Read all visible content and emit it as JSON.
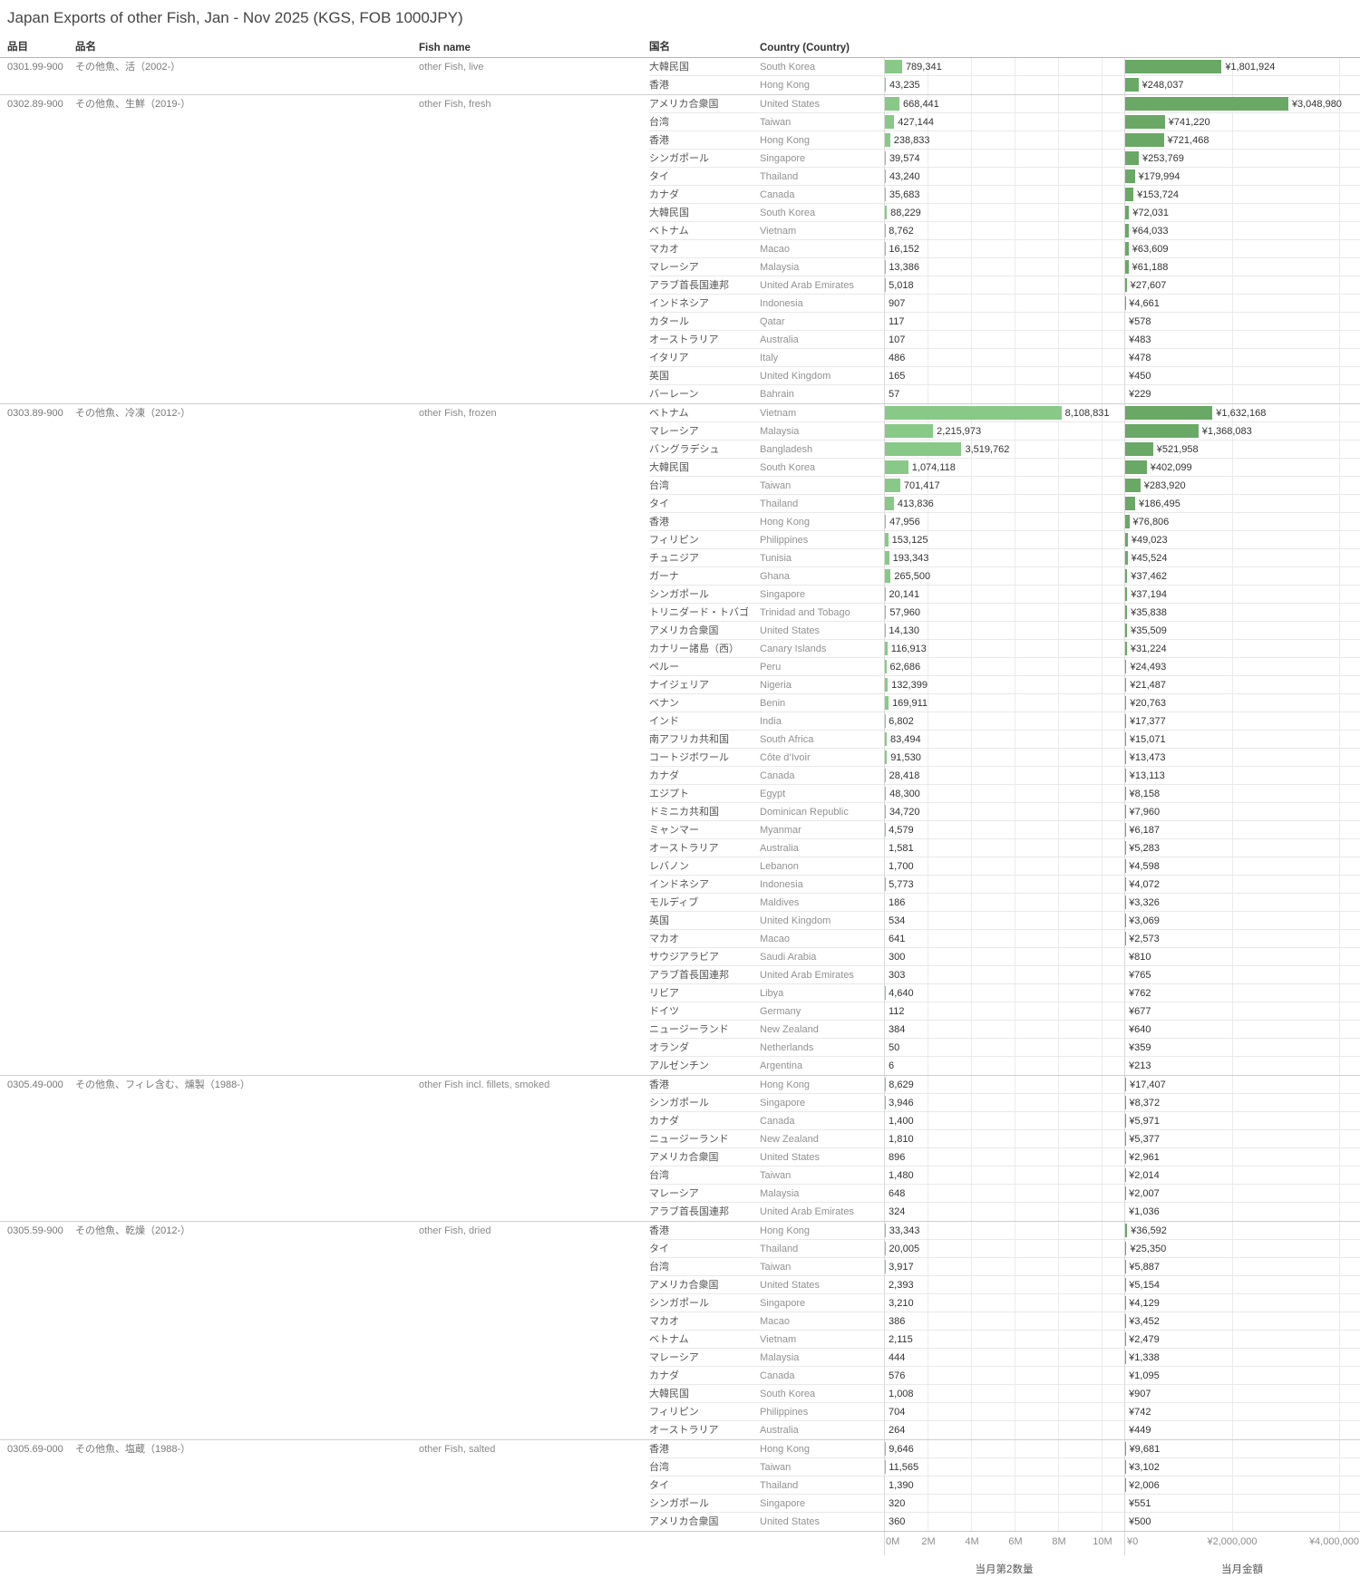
{
  "title": "Japan Exports of other Fish, Jan - Nov 2025 (KGS, FOB 1000JPY)",
  "columns": {
    "code": "品目",
    "name_jp": "品名",
    "fish_name": "Fish name",
    "country_jp": "国名",
    "country_en": "Country (Country)"
  },
  "chart_data": {
    "type": "bar",
    "title": "Japan Exports of other Fish, Jan - Nov 2025 (KGS, FOB 1000JPY)",
    "measures": {
      "qty": {
        "axis_title": "当月第2数量",
        "ticks": [
          "0M",
          "2M",
          "4M",
          "6M",
          "8M",
          "10M"
        ],
        "axis_range": [
          0,
          11040000
        ]
      },
      "amount": {
        "axis_title": "当月金額",
        "ticks": [
          "¥0",
          "¥2,000,000",
          "¥4,000,000"
        ],
        "axis_range": [
          0,
          4400000
        ]
      }
    },
    "colors": {
      "qty_bar": "#88c988",
      "amount_bar": "#69a865"
    },
    "sections": [
      {
        "code": "0301.99-900",
        "name_jp": "その他魚、活（2002-）",
        "fish_name": "other Fish, live",
        "rows": [
          {
            "country_jp": "大韓民国",
            "country_en": "South Korea",
            "qty": 789341,
            "amount": 1801924
          },
          {
            "country_jp": "香港",
            "country_en": "Hong Kong",
            "qty": 43235,
            "amount": 248037
          }
        ]
      },
      {
        "code": "0302.89-900",
        "name_jp": "その他魚、生鮮（2019-）",
        "fish_name": "other Fish, fresh",
        "rows": [
          {
            "country_jp": "アメリカ合衆国",
            "country_en": "United States",
            "qty": 668441,
            "amount": 3048980
          },
          {
            "country_jp": "台湾",
            "country_en": "Taiwan",
            "qty": 427144,
            "amount": 741220
          },
          {
            "country_jp": "香港",
            "country_en": "Hong Kong",
            "qty": 238833,
            "amount": 721468
          },
          {
            "country_jp": "シンガポール",
            "country_en": "Singapore",
            "qty": 39574,
            "amount": 253769
          },
          {
            "country_jp": "タイ",
            "country_en": "Thailand",
            "qty": 43240,
            "amount": 179994
          },
          {
            "country_jp": "カナダ",
            "country_en": "Canada",
            "qty": 35683,
            "amount": 153724
          },
          {
            "country_jp": "大韓民国",
            "country_en": "South Korea",
            "qty": 88229,
            "amount": 72031
          },
          {
            "country_jp": "ベトナム",
            "country_en": "Vietnam",
            "qty": 8762,
            "amount": 64033
          },
          {
            "country_jp": "マカオ",
            "country_en": "Macao",
            "qty": 16152,
            "amount": 63609
          },
          {
            "country_jp": "マレーシア",
            "country_en": "Malaysia",
            "qty": 13386,
            "amount": 61188
          },
          {
            "country_jp": "アラブ首長国連邦",
            "country_en": "United Arab Emirates",
            "qty": 5018,
            "amount": 27607
          },
          {
            "country_jp": "インドネシア",
            "country_en": "Indonesia",
            "qty": 907,
            "amount": 4661
          },
          {
            "country_jp": "カタール",
            "country_en": "Qatar",
            "qty": 117,
            "amount": 578
          },
          {
            "country_jp": "オーストラリア",
            "country_en": "Australia",
            "qty": 107,
            "amount": 483
          },
          {
            "country_jp": "イタリア",
            "country_en": "Italy",
            "qty": 486,
            "amount": 478
          },
          {
            "country_jp": "英国",
            "country_en": "United Kingdom",
            "qty": 165,
            "amount": 450
          },
          {
            "country_jp": "バーレーン",
            "country_en": "Bahrain",
            "qty": 57,
            "amount": 229
          }
        ]
      },
      {
        "code": "0303.89-900",
        "name_jp": "その他魚、冷凍（2012-）",
        "fish_name": "other Fish, frozen",
        "rows": [
          {
            "country_jp": "ベトナム",
            "country_en": "Vietnam",
            "qty": 8108831,
            "amount": 1632168
          },
          {
            "country_jp": "マレーシア",
            "country_en": "Malaysia",
            "qty": 2215973,
            "amount": 1368083
          },
          {
            "country_jp": "バングラデシュ",
            "country_en": "Bangladesh",
            "qty": 3519762,
            "amount": 521958
          },
          {
            "country_jp": "大韓民国",
            "country_en": "South Korea",
            "qty": 1074118,
            "amount": 402099
          },
          {
            "country_jp": "台湾",
            "country_en": "Taiwan",
            "qty": 701417,
            "amount": 283920
          },
          {
            "country_jp": "タイ",
            "country_en": "Thailand",
            "qty": 413836,
            "amount": 186495
          },
          {
            "country_jp": "香港",
            "country_en": "Hong Kong",
            "qty": 47956,
            "amount": 76806
          },
          {
            "country_jp": "フィリピン",
            "country_en": "Philippines",
            "qty": 153125,
            "amount": 49023
          },
          {
            "country_jp": "チュニジア",
            "country_en": "Tunisia",
            "qty": 193343,
            "amount": 45524
          },
          {
            "country_jp": "ガーナ",
            "country_en": "Ghana",
            "qty": 265500,
            "amount": 37462
          },
          {
            "country_jp": "シンガポール",
            "country_en": "Singapore",
            "qty": 20141,
            "amount": 37194
          },
          {
            "country_jp": "トリニダード・トバゴ",
            "country_en": "Trinidad and Tobago",
            "qty": 57960,
            "amount": 35838
          },
          {
            "country_jp": "アメリカ合衆国",
            "country_en": "United States",
            "qty": 14130,
            "amount": 35509
          },
          {
            "country_jp": "カナリー諸島（西）",
            "country_en": "Canary Islands",
            "qty": 116913,
            "amount": 31224
          },
          {
            "country_jp": "ペルー",
            "country_en": "Peru",
            "qty": 62686,
            "amount": 24493
          },
          {
            "country_jp": "ナイジェリア",
            "country_en": "Nigeria",
            "qty": 132399,
            "amount": 21487
          },
          {
            "country_jp": "ベナン",
            "country_en": "Benin",
            "qty": 169911,
            "amount": 20763
          },
          {
            "country_jp": "インド",
            "country_en": "India",
            "qty": 6802,
            "amount": 17377
          },
          {
            "country_jp": "南アフリカ共和国",
            "country_en": "South Africa",
            "qty": 83494,
            "amount": 15071
          },
          {
            "country_jp": "コートジボワール",
            "country_en": "Côte d’Ivoir",
            "qty": 91530,
            "amount": 13473
          },
          {
            "country_jp": "カナダ",
            "country_en": "Canada",
            "qty": 28418,
            "amount": 13113
          },
          {
            "country_jp": "エジプト",
            "country_en": "Egypt",
            "qty": 48300,
            "amount": 8158
          },
          {
            "country_jp": "ドミニカ共和国",
            "country_en": "Dominican Republic",
            "qty": 34720,
            "amount": 7960
          },
          {
            "country_jp": "ミャンマー",
            "country_en": "Myanmar",
            "qty": 4579,
            "amount": 6187
          },
          {
            "country_jp": "オーストラリア",
            "country_en": "Australia",
            "qty": 1581,
            "amount": 5283
          },
          {
            "country_jp": "レバノン",
            "country_en": "Lebanon",
            "qty": 1700,
            "amount": 4598
          },
          {
            "country_jp": "インドネシア",
            "country_en": "Indonesia",
            "qty": 5773,
            "amount": 4072
          },
          {
            "country_jp": "モルディブ",
            "country_en": "Maldives",
            "qty": 186,
            "amount": 3326
          },
          {
            "country_jp": "英国",
            "country_en": "United Kingdom",
            "qty": 534,
            "amount": 3069
          },
          {
            "country_jp": "マカオ",
            "country_en": "Macao",
            "qty": 641,
            "amount": 2573
          },
          {
            "country_jp": "サウジアラビア",
            "country_en": "Saudi Arabia",
            "qty": 300,
            "amount": 810
          },
          {
            "country_jp": "アラブ首長国連邦",
            "country_en": "United Arab Emirates",
            "qty": 303,
            "amount": 765
          },
          {
            "country_jp": "リビア",
            "country_en": "Libya",
            "qty": 4640,
            "amount": 762
          },
          {
            "country_jp": "ドイツ",
            "country_en": "Germany",
            "qty": 112,
            "amount": 677
          },
          {
            "country_jp": "ニュージーランド",
            "country_en": "New Zealand",
            "qty": 384,
            "amount": 640
          },
          {
            "country_jp": "オランダ",
            "country_en": "Netherlands",
            "qty": 50,
            "amount": 359
          },
          {
            "country_jp": "アルゼンチン",
            "country_en": "Argentina",
            "qty": 6,
            "amount": 213
          }
        ]
      },
      {
        "code": "0305.49-000",
        "name_jp": "その他魚、フィレ含む、燻製（1988-）",
        "fish_name": "other Fish incl. fillets, smoked",
        "rows": [
          {
            "country_jp": "香港",
            "country_en": "Hong Kong",
            "qty": 8629,
            "amount": 17407
          },
          {
            "country_jp": "シンガポール",
            "country_en": "Singapore",
            "qty": 3946,
            "amount": 8372
          },
          {
            "country_jp": "カナダ",
            "country_en": "Canada",
            "qty": 1400,
            "amount": 5971
          },
          {
            "country_jp": "ニュージーランド",
            "country_en": "New Zealand",
            "qty": 1810,
            "amount": 5377
          },
          {
            "country_jp": "アメリカ合衆国",
            "country_en": "United States",
            "qty": 896,
            "amount": 2961
          },
          {
            "country_jp": "台湾",
            "country_en": "Taiwan",
            "qty": 1480,
            "amount": 2014
          },
          {
            "country_jp": "マレーシア",
            "country_en": "Malaysia",
            "qty": 648,
            "amount": 2007
          },
          {
            "country_jp": "アラブ首長国連邦",
            "country_en": "United Arab Emirates",
            "qty": 324,
            "amount": 1036
          }
        ]
      },
      {
        "code": "0305.59-900",
        "name_jp": "その他魚、乾燥（2012-）",
        "fish_name": "other Fish, dried",
        "rows": [
          {
            "country_jp": "香港",
            "country_en": "Hong Kong",
            "qty": 33343,
            "amount": 36592
          },
          {
            "country_jp": "タイ",
            "country_en": "Thailand",
            "qty": 20005,
            "amount": 25350
          },
          {
            "country_jp": "台湾",
            "country_en": "Taiwan",
            "qty": 3917,
            "amount": 5887
          },
          {
            "country_jp": "アメリカ合衆国",
            "country_en": "United States",
            "qty": 2393,
            "amount": 5154
          },
          {
            "country_jp": "シンガポール",
            "country_en": "Singapore",
            "qty": 3210,
            "amount": 4129
          },
          {
            "country_jp": "マカオ",
            "country_en": "Macao",
            "qty": 386,
            "amount": 3452
          },
          {
            "country_jp": "ベトナム",
            "country_en": "Vietnam",
            "qty": 2115,
            "amount": 2479
          },
          {
            "country_jp": "マレーシア",
            "country_en": "Malaysia",
            "qty": 444,
            "amount": 1338
          },
          {
            "country_jp": "カナダ",
            "country_en": "Canada",
            "qty": 576,
            "amount": 1095
          },
          {
            "country_jp": "大韓民国",
            "country_en": "South Korea",
            "qty": 1008,
            "amount": 907
          },
          {
            "country_jp": "フィリピン",
            "country_en": "Philippines",
            "qty": 704,
            "amount": 742
          },
          {
            "country_jp": "オーストラリア",
            "country_en": "Australia",
            "qty": 264,
            "amount": 449
          }
        ]
      },
      {
        "code": "0305.69-000",
        "name_jp": "その他魚、塩蔵（1988-）",
        "fish_name": "other Fish, salted",
        "rows": [
          {
            "country_jp": "香港",
            "country_en": "Hong Kong",
            "qty": 9646,
            "amount": 9681
          },
          {
            "country_jp": "台湾",
            "country_en": "Taiwan",
            "qty": 11565,
            "amount": 3102
          },
          {
            "country_jp": "タイ",
            "country_en": "Thailand",
            "qty": 1390,
            "amount": 2006
          },
          {
            "country_jp": "シンガポール",
            "country_en": "Singapore",
            "qty": 320,
            "amount": 551
          },
          {
            "country_jp": "アメリカ合衆国",
            "country_en": "United States",
            "qty": 360,
            "amount": 500
          }
        ]
      }
    ]
  }
}
